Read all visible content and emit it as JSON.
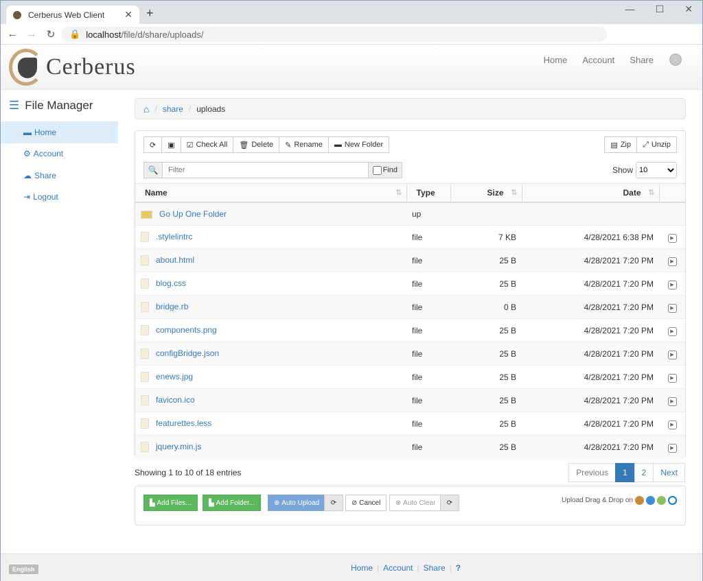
{
  "browser": {
    "tab_title": "Cerberus Web Client",
    "url_host": "localhost",
    "url_path": "/file/d/share/uploads/"
  },
  "header": {
    "logo_text": "Cerberus",
    "nav": [
      "Home",
      "Account",
      "Share"
    ]
  },
  "sidebar": {
    "title": "File Manager",
    "items": [
      {
        "label": "Home",
        "icon": "folder-icon",
        "active": true
      },
      {
        "label": "Account",
        "icon": "gear-icon"
      },
      {
        "label": "Share",
        "icon": "cloud-icon"
      },
      {
        "label": "Logout",
        "icon": "logout-icon"
      }
    ]
  },
  "breadcrumb": [
    "share",
    "uploads"
  ],
  "toolbar": {
    "check_all": "Check All",
    "delete": "Delete",
    "rename": "Rename",
    "new_folder": "New Folder",
    "zip": "Zip",
    "unzip": "Unzip",
    "filter_placeholder": "Filter",
    "find": "Find",
    "show_label": "Show",
    "show_value": "10"
  },
  "table": {
    "columns": [
      "Name",
      "Type",
      "Size",
      "Date"
    ],
    "rows": [
      {
        "name": "Go Up One Folder",
        "type": "up",
        "size": "",
        "date": ""
      },
      {
        "name": ".stylelintrc",
        "type": "file",
        "size": "7 KB",
        "date": "4/28/2021 6:38 PM"
      },
      {
        "name": "about.html",
        "type": "file",
        "size": "25 B",
        "date": "4/28/2021 7:20 PM"
      },
      {
        "name": "blog.css",
        "type": "file",
        "size": "25 B",
        "date": "4/28/2021 7:20 PM"
      },
      {
        "name": "bridge.rb",
        "type": "file",
        "size": "0 B",
        "date": "4/28/2021 7:20 PM"
      },
      {
        "name": "components.png",
        "type": "file",
        "size": "25 B",
        "date": "4/28/2021 7:20 PM"
      },
      {
        "name": "configBridge.json",
        "type": "file",
        "size": "25 B",
        "date": "4/28/2021 7:20 PM"
      },
      {
        "name": "enews.jpg",
        "type": "file",
        "size": "25 B",
        "date": "4/28/2021 7:20 PM"
      },
      {
        "name": "favicon.ico",
        "type": "file",
        "size": "25 B",
        "date": "4/28/2021 7:20 PM"
      },
      {
        "name": "featurettes.less",
        "type": "file",
        "size": "25 B",
        "date": "4/28/2021 7:20 PM"
      },
      {
        "name": "jquery.min.js",
        "type": "file",
        "size": "25 B",
        "date": "4/28/2021 7:20 PM"
      }
    ]
  },
  "pagination": {
    "info": "Showing 1 to 10 of 18 entries",
    "previous": "Previous",
    "pages": [
      "1",
      "2"
    ],
    "current": "1",
    "next": "Next"
  },
  "upload": {
    "add_files": "Add Files...",
    "add_folder": "Add Folder...",
    "auto_upload": "Auto Upload",
    "cancel": "Cancel",
    "auto_clear": "Auto Clear",
    "dnd_text": "Upload Drag & Drop on",
    "colors": {
      "green": "#5cb85c",
      "blue": "#7aa7d8"
    }
  },
  "footer": {
    "language": "English",
    "links": [
      "Home",
      "Account",
      "Share"
    ]
  }
}
